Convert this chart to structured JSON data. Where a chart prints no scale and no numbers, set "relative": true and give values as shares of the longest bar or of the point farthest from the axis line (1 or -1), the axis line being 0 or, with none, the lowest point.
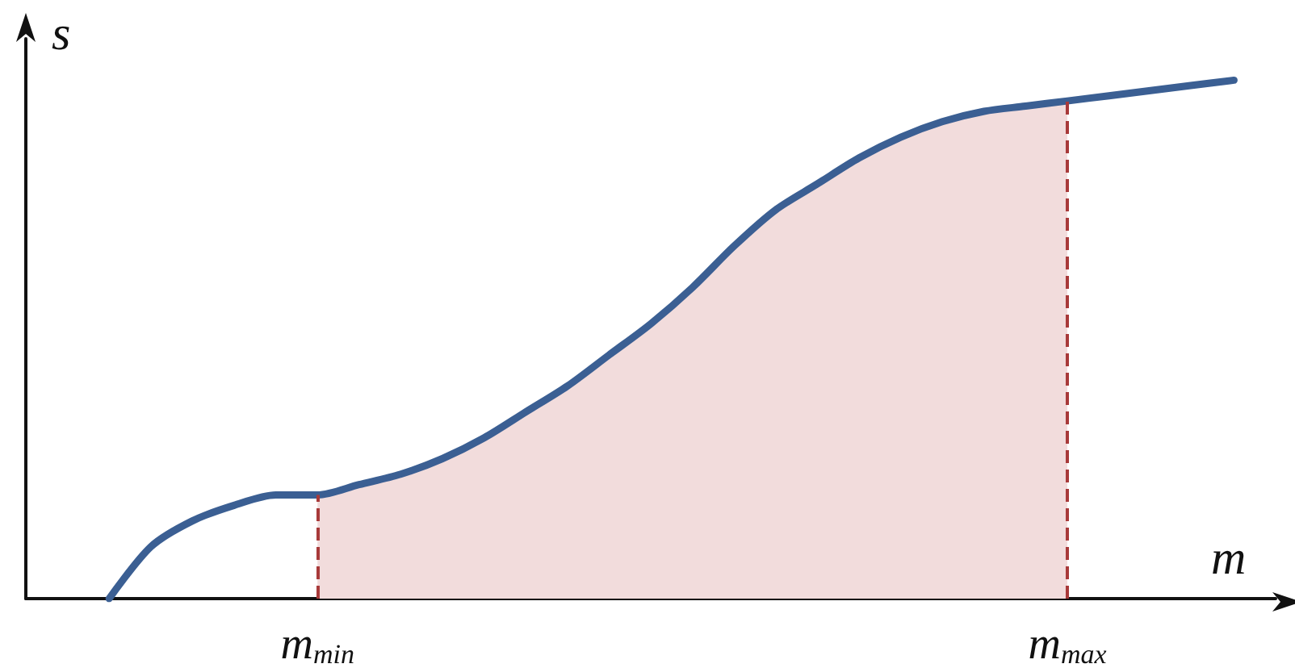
{
  "chart_data": {
    "type": "line",
    "relative": true,
    "xlabel": "m",
    "ylabel": "s",
    "categories": [
      null,
      null,
      null,
      null,
      null,
      null,
      null,
      "m$_{min}$",
      null,
      null,
      null,
      null,
      null,
      null,
      null,
      null,
      null,
      null,
      null,
      null,
      null,
      null,
      null,
      null,
      null,
      "m$_{max}$",
      null,
      null,
      null,
      null,
      null
    ],
    "series": [
      {
        "type": "area",
        "color": "#f2dcdc",
        "values": [
          null,
          null,
          null,
          null,
          null,
          null,
          null,
          0.2,
          0.22,
          0.24,
          0.27,
          0.31,
          0.36,
          0.41,
          0.47,
          0.53,
          0.6,
          0.68,
          0.75,
          0.8,
          0.85,
          0.89,
          0.92,
          0.94,
          0.95,
          0.96,
          null,
          null,
          null,
          null,
          null
        ]
      },
      {
        "color": "#3b5f93",
        "values": [
          null,
          null,
          0,
          0.1,
          0.15,
          0.18,
          0.2,
          0.2,
          0.22,
          0.24,
          0.27,
          0.31,
          0.36,
          0.41,
          0.47,
          0.53,
          0.6,
          0.68,
          0.75,
          0.8,
          0.85,
          0.89,
          0.92,
          0.94,
          0.95,
          0.96,
          0.97,
          0.98,
          0.99,
          1,
          null
        ]
      }
    ],
    "ref_lines": [
      {
        "axis": "x",
        "value": "m$_{min}$",
        "color": "#a83a3a",
        "line_style": "dashed"
      },
      {
        "axis": "x",
        "value": "m$_{max}$",
        "color": "#a83a3a",
        "line_style": "dashed"
      }
    ],
    "marker": "none",
    "grid": false
  }
}
